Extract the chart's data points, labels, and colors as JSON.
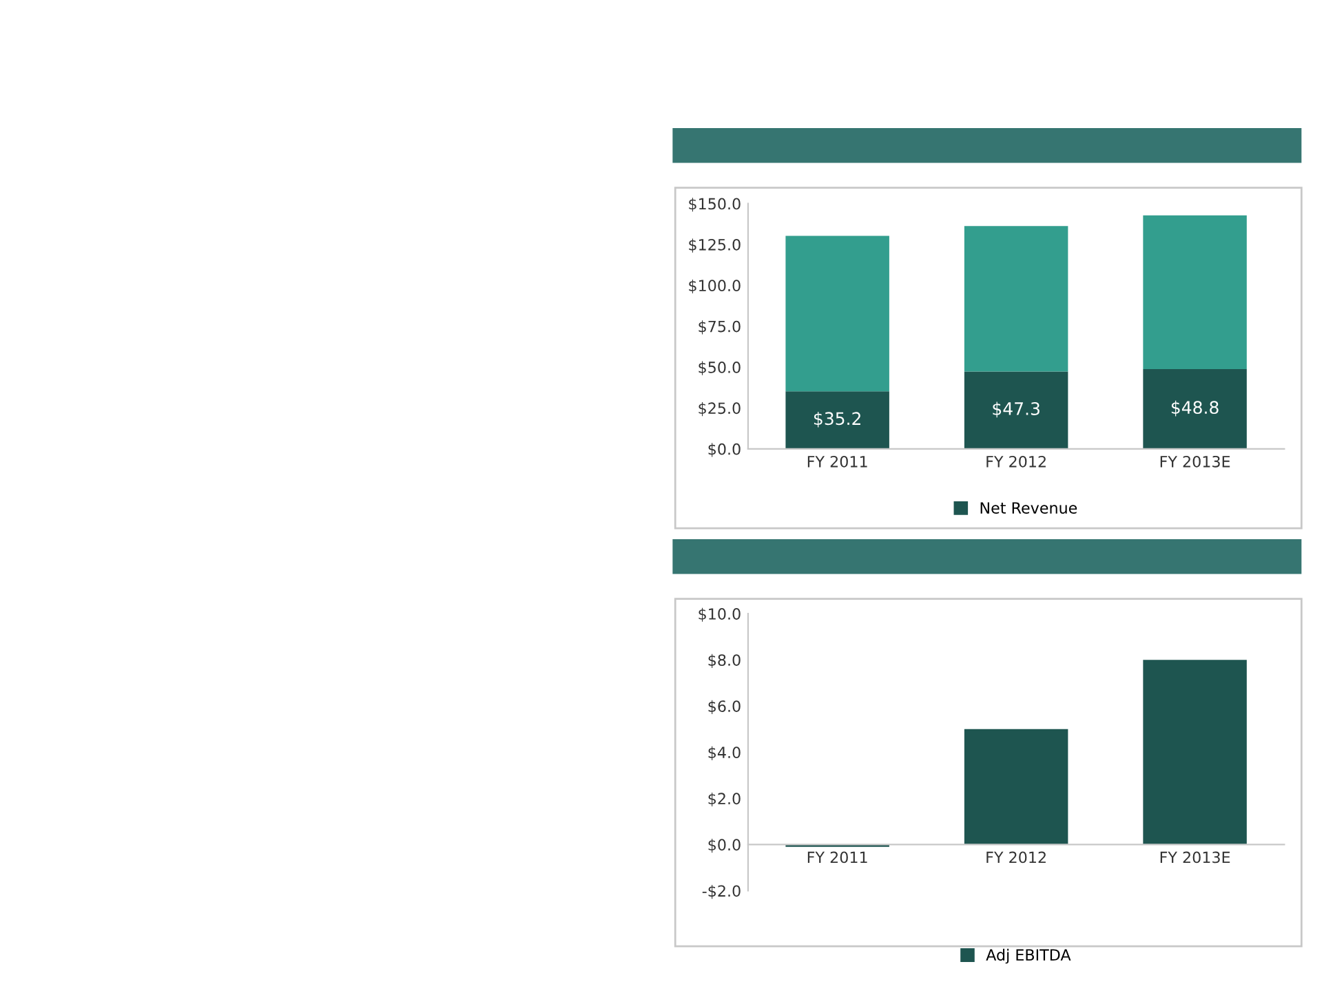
{
  "chart_data": [
    {
      "type": "bar",
      "stacked": true,
      "categories": [
        "FY 2011",
        "FY 2012",
        "FY 2013E"
      ],
      "series": [
        {
          "name": "Net Revenue",
          "color": "#1e5550",
          "values": [
            35.2,
            47.3,
            48.8
          ],
          "value_labels": [
            "$35.2",
            "$47.3",
            "$48.8"
          ]
        },
        {
          "color": "#339e8e",
          "values": [
            95,
            89,
            94
          ]
        }
      ],
      "ylim": [
        0,
        150
      ],
      "yticks": [
        {
          "value": 0,
          "label": "$0.0"
        },
        {
          "value": 25,
          "label": "$25.0"
        },
        {
          "value": 50,
          "label": "$50.0"
        },
        {
          "value": 75,
          "label": "$75.0"
        },
        {
          "value": 100,
          "label": "$100.0"
        },
        {
          "value": 125,
          "label": "$125.0"
        },
        {
          "value": 150,
          "label": "$150.0"
        }
      ],
      "grid": false,
      "legend": "bottom"
    },
    {
      "type": "bar",
      "categories": [
        "FY 2011",
        "FY 2012",
        "FY 2013E"
      ],
      "series": [
        {
          "name": "Adj EBITDA",
          "color": "#1e5550",
          "values": [
            -0.1,
            5.0,
            8.0
          ]
        }
      ],
      "ylim": [
        -2,
        10
      ],
      "yticks": [
        {
          "value": -2,
          "label": "-$2.0"
        },
        {
          "value": 0,
          "label": "$0.0"
        },
        {
          "value": 2,
          "label": "$2.0"
        },
        {
          "value": 4,
          "label": "$4.0"
        },
        {
          "value": 6,
          "label": "$6.0"
        },
        {
          "value": 8,
          "label": "$8.0"
        },
        {
          "value": 10,
          "label": "$10.0"
        }
      ],
      "grid": false,
      "legend": "bottom"
    }
  ]
}
